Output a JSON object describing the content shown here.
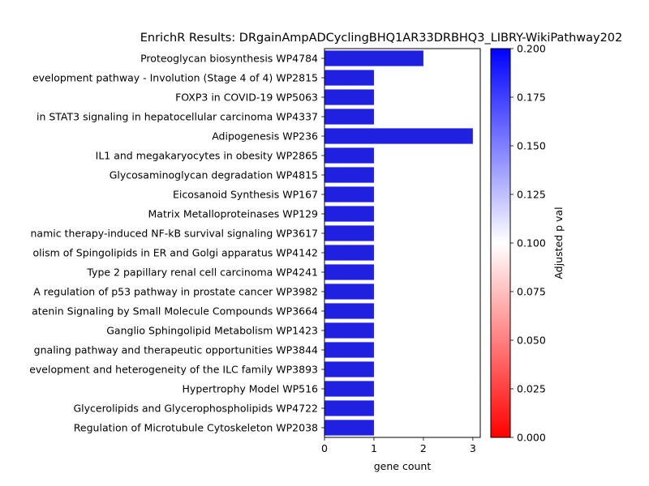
{
  "chart_data": {
    "type": "bar",
    "orientation": "horizontal",
    "title": "EnrichR Results: DRgainAmpADCyclingBHQ1AR33DRBHQ3_LIBRY-WikiPathway202",
    "xlabel": "gene count",
    "ylabel": "",
    "xlim": [
      0,
      3.15
    ],
    "xticks": [
      0,
      1,
      2,
      3
    ],
    "grid": false,
    "categories": [
      "Proteoglycan biosynthesis WP4784",
      "evelopment pathway - Involution (Stage 4 of 4) WP2815",
      "FOXP3 in COVID-19 WP5063",
      "in STAT3 signaling in hepatocellular carcinoma WP4337",
      "Adipogenesis WP236",
      "IL1 and megakaryocytes in obesity WP2865",
      "Glycosaminoglycan degradation WP4815",
      "Eicosanoid Synthesis WP167",
      "Matrix Metalloproteinases WP129",
      "namic therapy-induced NF-kB survival signaling WP3617",
      "olism of Spingolipids in ER and Golgi apparatus WP4142",
      "Type 2 papillary renal cell carcinoma WP4241",
      "A regulation of p53 pathway in prostate cancer WP3982",
      "atenin Signaling by Small Molecule Compounds WP3664",
      "Ganglio Sphingolipid Metabolism WP1423",
      "gnaling pathway and therapeutic opportunities WP3844",
      "evelopment and heterogeneity of the ILC family WP3893",
      "Hypertrophy Model WP516",
      "Glycerolipids and Glycerophospholipids WP4722",
      "Regulation of Microtubule Cytoskeleton WP2038"
    ],
    "values": [
      2,
      1,
      1,
      1,
      3,
      1,
      1,
      1,
      1,
      1,
      1,
      1,
      1,
      1,
      1,
      1,
      1,
      1,
      1,
      1
    ],
    "bar_color": "#2020e0",
    "colorbar": {
      "label": "Adjusted p val",
      "range": [
        0,
        0.2
      ],
      "ticks": [
        "0.000",
        "0.025",
        "0.050",
        "0.075",
        "0.100",
        "0.125",
        "0.150",
        "0.175",
        "0.200"
      ],
      "colors": [
        "#ff0000",
        "#ffffff",
        "#0000ff"
      ]
    }
  }
}
